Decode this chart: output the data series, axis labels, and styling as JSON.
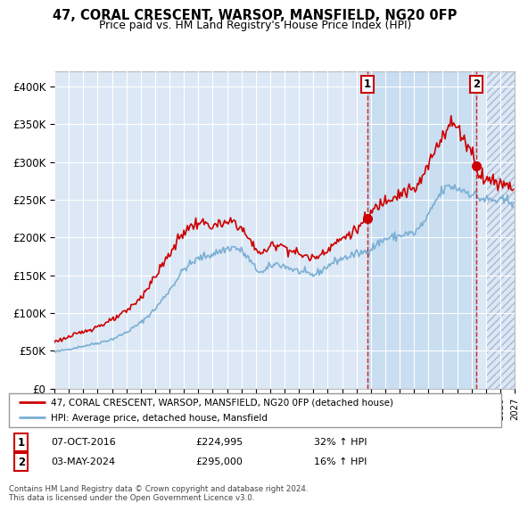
{
  "title": "47, CORAL CRESCENT, WARSOP, MANSFIELD, NG20 0FP",
  "subtitle": "Price paid vs. HM Land Registry's House Price Index (HPI)",
  "ylim": [
    0,
    420000
  ],
  "yticks": [
    0,
    50000,
    100000,
    150000,
    200000,
    250000,
    300000,
    350000,
    400000
  ],
  "ytick_labels": [
    "£0",
    "£50K",
    "£100K",
    "£150K",
    "£200K",
    "£250K",
    "£300K",
    "£350K",
    "£400K"
  ],
  "background_color": "#dce8f5",
  "grid_color": "#ffffff",
  "red_color": "#cc0000",
  "blue_color": "#7aafd4",
  "transaction1_date": "07-OCT-2016",
  "transaction1_price": 224995,
  "transaction1_hpi": "32% ↑ HPI",
  "transaction2_date": "03-MAY-2024",
  "transaction2_price": 295000,
  "transaction2_hpi": "16% ↑ HPI",
  "legend_label1": "47, CORAL CRESCENT, WARSOP, MANSFIELD, NG20 0FP (detached house)",
  "legend_label2": "HPI: Average price, detached house, Mansfield",
  "footer": "Contains HM Land Registry data © Crown copyright and database right 2024.\nThis data is licensed under the Open Government Licence v3.0.",
  "vline1_x": 2016.75,
  "vline2_x": 2024.33,
  "marker1_price": 224995,
  "marker2_price": 295000,
  "xmin": 1995,
  "xmax": 2027,
  "shade_start": 2016.75,
  "shade_end": 2024.33,
  "hatch_start": 2025.0
}
